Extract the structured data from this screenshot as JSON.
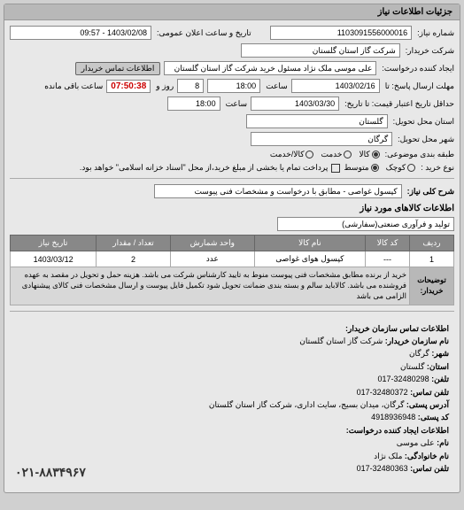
{
  "header": "جزئیات اطلاعات نیاز",
  "request": {
    "number_label": "شماره نیاز:",
    "number": "1103091556000016",
    "datetime_label": "تاریخ و ساعت اعلان عمومی:",
    "datetime": "1403/02/08 - 09:57",
    "buyer_label": "شرکت خریدار:",
    "buyer": "شرکت گاز استان گلستان",
    "creator_label": "ایجاد کننده درخواست:",
    "creator": "علی موسی ملک نژاد مسئول خرید شرکت گاز استان گلستان",
    "contact_btn": "اطلاعات تماس خریدار",
    "reply_until_label": "مهلت ارسال پاسخ: تا",
    "reply_date": "1403/02/16",
    "time_label": "ساعت",
    "reply_time": "18:00",
    "days_remaining": "8",
    "days_label": "روز و",
    "time_remaining": "07:50:38",
    "remaining_label": "ساعت باقی مانده",
    "validity_label": "حداقل تاریخ اعتبار قیمت: تا تاریخ:",
    "validity_date": "1403/03/30",
    "validity_time": "18:00",
    "province_label": "استان محل تحویل:",
    "province": "گلستان",
    "city_label": "شهر محل تحویل:",
    "city": "گرگان",
    "budget_label": "طبقه بندی موضوعی:",
    "buy_type_label": "نوع خرید :",
    "payment_note": "پرداخت تمام یا بخشی از مبلغ خرید،از محل \"اسناد خزانه اسلامی\" خواهد بود."
  },
  "budget_options": [
    {
      "label": "کالا",
      "checked": true
    },
    {
      "label": "خدمت",
      "checked": false
    },
    {
      "label": "کالا/خدمت",
      "checked": false
    }
  ],
  "buy_options": [
    {
      "label": "کوچک",
      "checked": false
    },
    {
      "label": "متوسط",
      "checked": true
    }
  ],
  "desc": {
    "title_label": "شرح کلی نیاز:",
    "title": "کپسول غواصی - مطابق با درخواست و مشخصات فنی پیوست"
  },
  "goods": {
    "header": "اطلاعات کالاهای مورد نیاز",
    "category_field": "تولید و فرآوری صنعتی(سفارشی)",
    "columns": [
      "ردیف",
      "کد کالا",
      "نام کالا",
      "واحد شمارش",
      "تعداد / مقدار",
      "تاریخ نیاز"
    ],
    "rows": [
      [
        "1",
        "---",
        "کپسول هوای غواصی",
        "عدد",
        "2",
        "1403/03/12"
      ]
    ],
    "note_label": "توضیحات خریدار:",
    "note": "خرید از برنده مطابق مشخصات فنی پیوست منوط به تایید کارشناس شرکت می باشد. هزینه حمل و تحویل در مقصد به عهده فروشنده می باشد. کالاباید سالم و بسته بندی ضمانت تحویل شود تکمیل فایل پیوست و ارسال مشخصات فنی کالای پیشنهادی الزامی می باشد"
  },
  "contact": {
    "header": "اطلاعات تماس سازمان خریدار:",
    "org_label": "نام سازمان خریدار:",
    "org": "شرکت گاز استان گلستان",
    "city_label": "شهر:",
    "city": "گرگان",
    "province_label": "استان:",
    "province": "گلستان",
    "phone_label": "تلفن:",
    "phone": "32480298-017",
    "fax_label": "تلفن تماس:",
    "fax": "32480372-017",
    "address_label": "آدرس پستی:",
    "address": "گرگان، میدان بسیج، سایت اداری، شرکت گاز استان گلستان",
    "postal_label": "کد پستی:",
    "postal": "4918936948",
    "creator_header": "اطلاعات ایجاد کننده درخواست:",
    "fname_label": "نام:",
    "fname": "علی موسی",
    "lname_label": "نام خانوادگی:",
    "lname": "ملک نژاد",
    "cphone_label": "تلفن تماس:",
    "cphone": "32480363-017",
    "footer_phone": "۰۲۱-۸۸۳۴۹۶۷"
  }
}
